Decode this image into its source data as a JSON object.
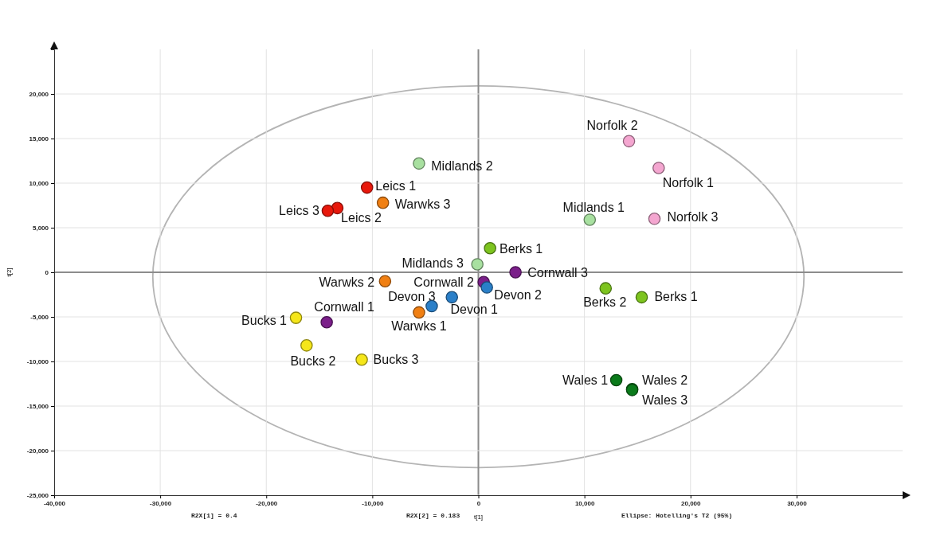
{
  "chart_data": {
    "type": "scatter",
    "xlabel": "t[1]",
    "ylabel": "t[2]",
    "xlim": [
      -40000,
      40000
    ],
    "ylim": [
      -25000,
      25000
    ],
    "xticks": [
      {
        "value": -40000,
        "label": "-40,000"
      },
      {
        "value": -30000,
        "label": "-30,000"
      },
      {
        "value": -20000,
        "label": "-20,000"
      },
      {
        "value": -10000,
        "label": "-10,000"
      },
      0,
      {
        "value": 10000,
        "label": "10,000"
      },
      {
        "value": 20000,
        "label": "20,000"
      },
      {
        "value": 30000,
        "label": "30,000"
      }
    ],
    "yticks": [
      {
        "value": -25000,
        "label": "-25,000"
      },
      {
        "value": -20000,
        "label": "-20,000"
      },
      {
        "value": -15000,
        "label": "-15,000"
      },
      {
        "value": -10000,
        "label": "-10,000"
      },
      {
        "value": -5000,
        "label": "-5,000"
      },
      0,
      {
        "value": 5000,
        "label": "5,000"
      },
      {
        "value": 10000,
        "label": "10,000"
      },
      {
        "value": 15000,
        "label": "15,000"
      },
      {
        "value": 20000,
        "label": "20,000"
      }
    ],
    "grid": true,
    "marker": "circle",
    "series": [
      {
        "color": "#e8180c",
        "x": [
          -10500,
          -13300,
          -14200
        ],
        "values": [
          9500,
          7200,
          6900
        ],
        "value_labels": [
          "Leics 1",
          "Leics 2",
          "Leics 3"
        ]
      },
      {
        "color": "#f07f12",
        "x": [
          -5600,
          -8800,
          -9000
        ],
        "values": [
          -4500,
          -1000,
          7800
        ],
        "value_labels": [
          "Warwks 1",
          "Warwks 2",
          "Warwks 3"
        ]
      },
      {
        "color": "#a8e0a0",
        "x": [
          10500,
          -5600,
          -100
        ],
        "values": [
          5900,
          12200,
          900
        ],
        "value_labels": [
          "Midlands 1",
          "Midlands 2",
          "Midlands 3"
        ]
      },
      {
        "color": "#f4a6d0",
        "x": [
          17000,
          14200,
          16600
        ],
        "values": [
          11700,
          14700,
          6000
        ],
        "value_labels": [
          "Norfolk 1",
          "Norfolk 2",
          "Norfolk 3"
        ]
      },
      {
        "color": "#7dc41f",
        "x": [
          1100,
          12000,
          15400
        ],
        "values": [
          2700,
          -1800,
          -2800
        ],
        "value_labels": [
          "Berks 1",
          "Berks 2",
          "Berks 1"
        ]
      },
      {
        "color": "#7b1f8a",
        "x": [
          -14300,
          500,
          3500
        ],
        "values": [
          -5600,
          -1100,
          0
        ],
        "value_labels": [
          "Cornwall 1",
          "Cornwall 2",
          "Cornwall 3"
        ]
      },
      {
        "color": "#2a7fc8",
        "x": [
          -2500,
          800,
          -4400
        ],
        "values": [
          -2800,
          -1700,
          -3800
        ],
        "value_labels": [
          "Devon 1",
          "Devon 2",
          "Devon 3"
        ]
      },
      {
        "color": "#f5e61a",
        "x": [
          -17200,
          -16200,
          -11000
        ],
        "values": [
          -5100,
          -8200,
          -9800
        ],
        "value_labels": [
          "Bucks 1",
          "Bucks 2",
          "Bucks 3"
        ]
      },
      {
        "color": "#0a7a1a",
        "x": [
          13000,
          14500,
          14500
        ],
        "values": [
          -12100,
          -13100,
          -13200
        ],
        "value_labels": [
          "Wales 1",
          "Wales 2",
          "Wales 3"
        ]
      }
    ],
    "annotations": [
      "R2X[1] = 0.4",
      "R2X[2] = 0.183",
      "Ellipse: Hotelling's T2 (95%)"
    ]
  }
}
